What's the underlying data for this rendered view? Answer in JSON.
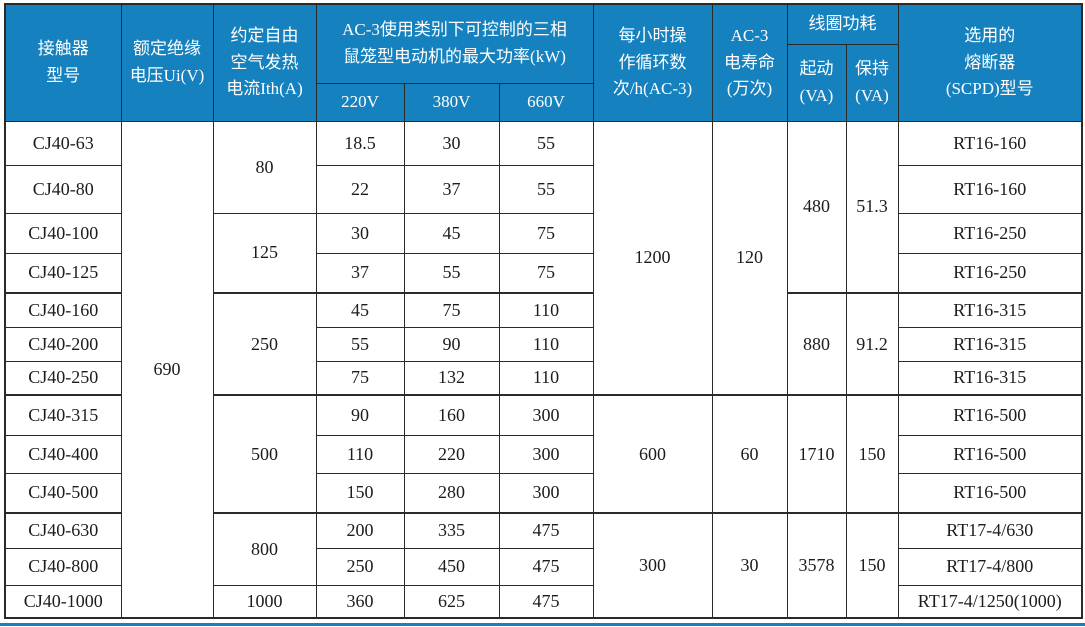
{
  "colors": {
    "header_bg": "#1581be",
    "header_text": "#ffffff",
    "border": "#2a2a2a",
    "body_text": "#1c1c1c",
    "background": "#ffffff",
    "accent_line": "#1581be"
  },
  "table": {
    "header": {
      "model": "接触器\n型号",
      "rated_insulation_voltage": "额定绝缘\n电压Ui(V)",
      "conventional_thermal_current": "约定自由\n空气发热\n电流Ith(A)",
      "max_power_title": "AC-3使用类别下可控制的三相\n鼠笼型电动机的最大功率(kW)",
      "voltages": [
        "220V",
        "380V",
        "660V"
      ],
      "operating_cycles": "每小时操\n作循环数\n次/h(AC-3)",
      "electrical_life": "AC-3\n电寿命\n(万次)",
      "coil_consumption": "线圈功耗",
      "coil_start": "起动\n(VA)",
      "coil_hold": "保持\n(VA)",
      "fuse_model": "选用的\n熔断器\n(SCPD)型号"
    },
    "rows": [
      {
        "model": "CJ40-63",
        "p220": "18.5",
        "p380": "30",
        "p660": "55",
        "fuse": "RT16-160"
      },
      {
        "model": "CJ40-80",
        "p220": "22",
        "p380": "37",
        "p660": "55",
        "fuse": "RT16-160"
      },
      {
        "model": "CJ40-100",
        "p220": "30",
        "p380": "45",
        "p660": "75",
        "fuse": "RT16-250"
      },
      {
        "model": "CJ40-125",
        "p220": "37",
        "p380": "55",
        "p660": "75",
        "fuse": "RT16-250"
      },
      {
        "model": "CJ40-160",
        "p220": "45",
        "p380": "75",
        "p660": "110",
        "fuse": "RT16-315"
      },
      {
        "model": "CJ40-200",
        "p220": "55",
        "p380": "90",
        "p660": "110",
        "fuse": "RT16-315"
      },
      {
        "model": "CJ40-250",
        "p220": "75",
        "p380": "132",
        "p660": "110",
        "fuse": "RT16-315"
      },
      {
        "model": "CJ40-315",
        "p220": "90",
        "p380": "160",
        "p660": "300",
        "fuse": "RT16-500"
      },
      {
        "model": "CJ40-400",
        "p220": "110",
        "p380": "220",
        "p660": "300",
        "fuse": "RT16-500"
      },
      {
        "model": "CJ40-500",
        "p220": "150",
        "p380": "280",
        "p660": "300",
        "fuse": "RT16-500"
      },
      {
        "model": "CJ40-630",
        "p220": "200",
        "p380": "335",
        "p660": "475",
        "fuse": "RT17-4/630"
      },
      {
        "model": "CJ40-800",
        "p220": "250",
        "p380": "450",
        "p660": "475",
        "fuse": "RT17-4/800"
      },
      {
        "model": "CJ40-1000",
        "p220": "360",
        "p380": "625",
        "p660": "475",
        "fuse": "RT17-4/1250(1000)"
      }
    ],
    "merged": {
      "ui_voltage": [
        {
          "value": "690",
          "row_start": 0,
          "row_end": 12
        }
      ],
      "ith": [
        {
          "value": "80",
          "row_start": 0,
          "row_end": 1
        },
        {
          "value": "125",
          "row_start": 2,
          "row_end": 3
        },
        {
          "value": "250",
          "row_start": 4,
          "row_end": 6
        },
        {
          "value": "500",
          "row_start": 7,
          "row_end": 9
        },
        {
          "value": "800",
          "row_start": 10,
          "row_end": 11
        },
        {
          "value": "1000",
          "row_start": 12,
          "row_end": 12
        }
      ],
      "ops_per_hour": [
        {
          "value": "1200",
          "row_start": 0,
          "row_end": 6
        },
        {
          "value": "600",
          "row_start": 7,
          "row_end": 9
        },
        {
          "value": "300",
          "row_start": 10,
          "row_end": 12
        }
      ],
      "electrical_life": [
        {
          "value": "120",
          "row_start": 0,
          "row_end": 6
        },
        {
          "value": "60",
          "row_start": 7,
          "row_end": 9
        },
        {
          "value": "30",
          "row_start": 10,
          "row_end": 12
        }
      ],
      "coil_start": [
        {
          "value": "480",
          "row_start": 0,
          "row_end": 3
        },
        {
          "value": "880",
          "row_start": 4,
          "row_end": 6
        },
        {
          "value": "1710",
          "row_start": 7,
          "row_end": 9
        },
        {
          "value": "3578",
          "row_start": 10,
          "row_end": 12
        }
      ],
      "coil_hold": [
        {
          "value": "51.3",
          "row_start": 0,
          "row_end": 3
        },
        {
          "value": "91.2",
          "row_start": 4,
          "row_end": 6
        },
        {
          "value": "150",
          "row_start": 7,
          "row_end": 9
        },
        {
          "value": "150",
          "row_start": 10,
          "row_end": 12
        }
      ]
    }
  }
}
